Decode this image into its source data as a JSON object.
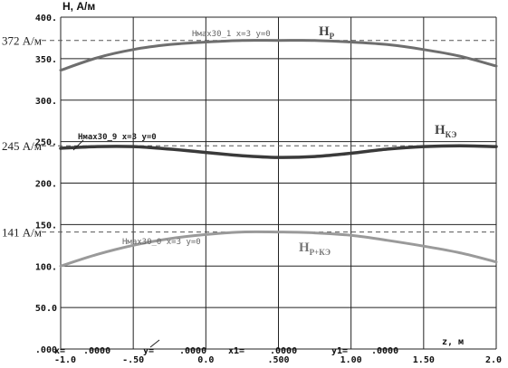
{
  "chart_data": {
    "type": "line",
    "ylabel": "H, А/м",
    "xlabel": "z, м",
    "xlim": [
      -1.0,
      2.0
    ],
    "ylim": [
      0,
      400
    ],
    "x_ticks": [
      "-1.0",
      "-.50",
      "0.0",
      ".500",
      "1.00",
      "1.50",
      "2.0"
    ],
    "y_ticks": [
      "400.",
      "350.",
      "300.",
      "250.",
      "200.",
      "150.",
      "100.",
      "50.0",
      ".000"
    ],
    "grid": true,
    "series": [
      {
        "name": "HP",
        "name_main": "H",
        "name_sub": "P",
        "curve_label": "Hмах30_1  x=3  y=0",
        "color": "#6e6e6e",
        "x": [
          -1.0,
          -0.75,
          -0.5,
          -0.25,
          0.0,
          0.25,
          0.5,
          0.75,
          1.0,
          1.25,
          1.5,
          1.75,
          2.0
        ],
        "y": [
          336,
          351,
          361,
          367,
          370,
          372,
          372,
          372,
          370,
          367,
          361,
          353,
          341
        ]
      },
      {
        "name": "HКЭ",
        "name_main": "H",
        "name_sub": "КЭ",
        "curve_label": "Hмах30_9  x=3  y=0",
        "color": "#3a3a3a",
        "x": [
          -1.0,
          -0.75,
          -0.5,
          -0.25,
          0.0,
          0.25,
          0.5,
          0.75,
          1.0,
          1.25,
          1.5,
          1.75,
          2.0
        ],
        "y": [
          242,
          244,
          244,
          241,
          237,
          233,
          231,
          232,
          236,
          241,
          244,
          245,
          244
        ]
      },
      {
        "name": "HP+КЭ",
        "name_main": "H",
        "name_sub": "P+КЭ",
        "curve_label": "Hмах30_0  x=3  y=0",
        "color": "#9a9a9a",
        "x": [
          -1.0,
          -0.75,
          -0.5,
          -0.25,
          0.0,
          0.25,
          0.5,
          0.75,
          1.0,
          1.25,
          1.5,
          1.75,
          2.0
        ],
        "y": [
          100,
          114,
          125,
          133,
          138,
          141,
          141,
          140,
          137,
          131,
          124,
          116,
          105
        ]
      }
    ],
    "reference_lines": [
      {
        "value": 372,
        "label": "372 А/м"
      },
      {
        "value": 245,
        "label": "245 А/м"
      },
      {
        "value": 141,
        "label": "141 А/м"
      }
    ],
    "footer": {
      "x_label": "x=",
      "x_value": ".0000",
      "y_label": "y=",
      "y_value": ".0000",
      "x1_label": "x1=",
      "x1_value": ".0000",
      "y1_label": "y1=",
      "y1_value": ".0000"
    }
  }
}
